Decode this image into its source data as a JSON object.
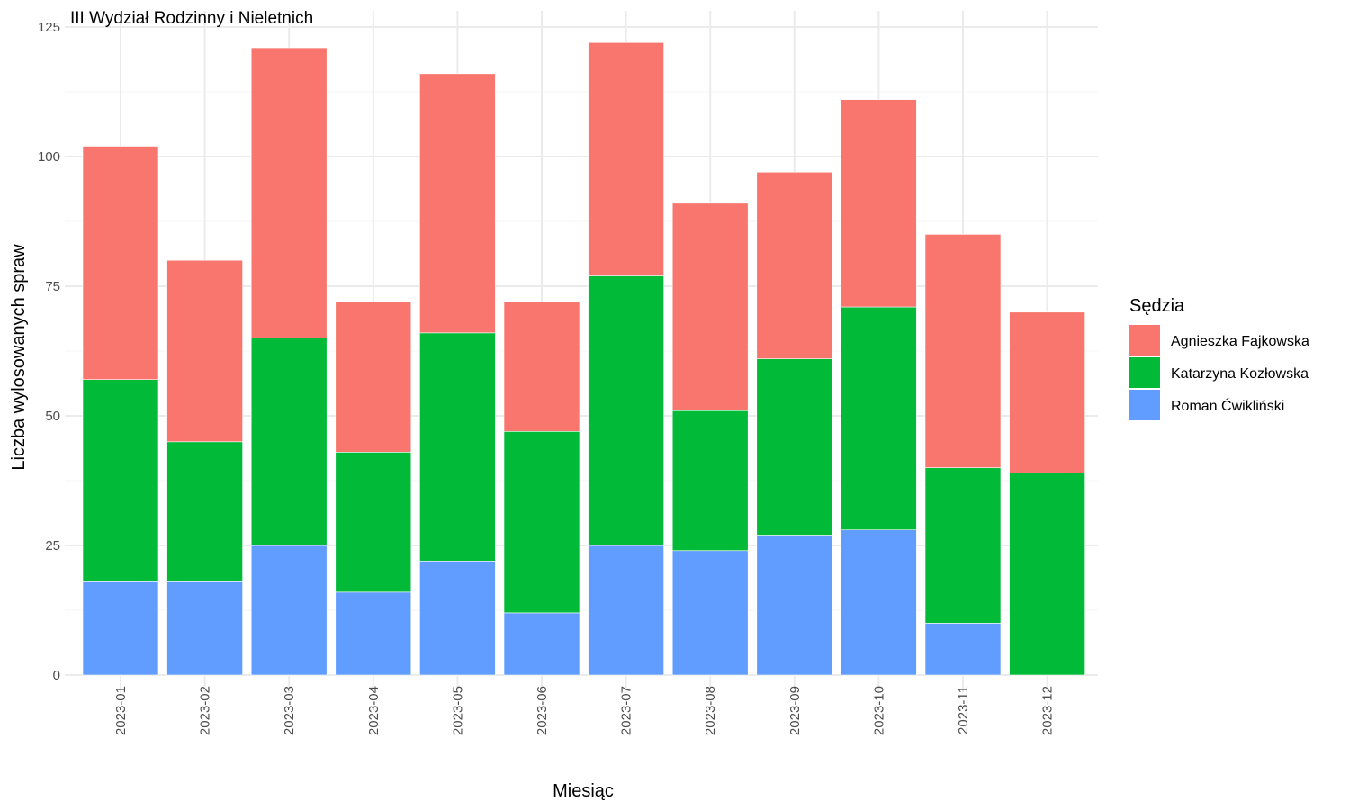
{
  "chart_data": {
    "type": "bar",
    "stacked": true,
    "title": "III Wydział Rodzinny i Nieletnich",
    "xlabel": "Miesiąc",
    "ylabel": "Liczba wylosowanych spraw",
    "ylim": [
      0,
      125
    ],
    "yticks": [
      0,
      25,
      50,
      75,
      100,
      125
    ],
    "grid": true,
    "legend_title": "Sędzia",
    "legend_position": "right",
    "categories": [
      "2023-01",
      "2023-02",
      "2023-03",
      "2023-04",
      "2023-05",
      "2023-06",
      "2023-07",
      "2023-08",
      "2023-09",
      "2023-10",
      "2023-11",
      "2023-12"
    ],
    "series": [
      {
        "name": "Roman Ćwikliński",
        "color": "#619CFF",
        "values": [
          18,
          18,
          25,
          16,
          22,
          12,
          25,
          24,
          27,
          28,
          10,
          0
        ]
      },
      {
        "name": "Katarzyna Kozłowska",
        "color": "#00BA38",
        "values": [
          39,
          27,
          40,
          27,
          44,
          35,
          52,
          27,
          34,
          43,
          30,
          39
        ]
      },
      {
        "name": "Agnieszka Fajkowska",
        "color": "#F8766D",
        "values": [
          45,
          35,
          56,
          29,
          50,
          25,
          45,
          40,
          36,
          40,
          45,
          31
        ]
      }
    ],
    "legend_order": [
      "Agnieszka Fajkowska",
      "Katarzyna Kozłowska",
      "Roman Ćwikliński"
    ]
  }
}
